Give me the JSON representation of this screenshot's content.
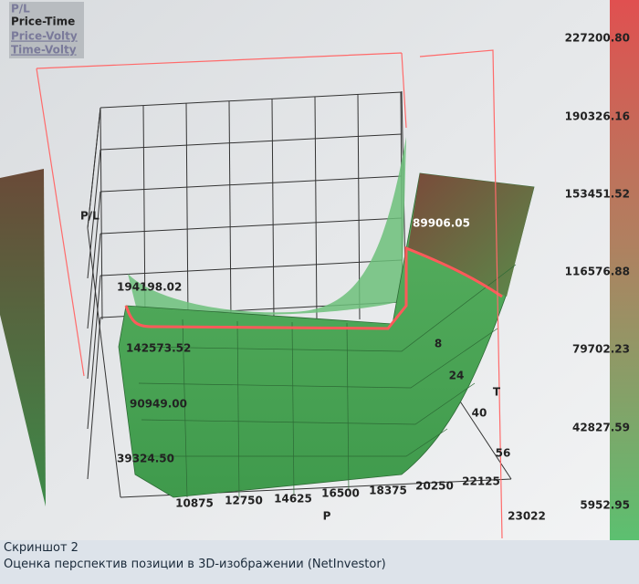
{
  "menu": {
    "items": [
      "P/L",
      "Price-Time",
      "Price-Volty",
      "Time-Volty"
    ]
  },
  "colorbar": {
    "labels": [
      "227200.80",
      "190326.16",
      "153451.52",
      "116576.88",
      "79702.23",
      "42827.59",
      "5952.95"
    ]
  },
  "plot": {
    "z_axis_label": "P/L",
    "z_labels": [
      "194198.02",
      "142573.52",
      "90949.00",
      "39324.50"
    ],
    "marker_label": "89906.05",
    "x_axis_label": "P",
    "x_labels": [
      "10875",
      "12750",
      "14625",
      "16500",
      "18375",
      "20250",
      "22125",
      "23022"
    ],
    "y_axis_label": "T",
    "y_labels": [
      "8",
      "24",
      "40",
      "56"
    ]
  },
  "caption": {
    "lines": [
      "Скриншот 2",
      "Оценка перспектив позиции в 3D-изображении (NetInvestor)"
    ]
  }
}
